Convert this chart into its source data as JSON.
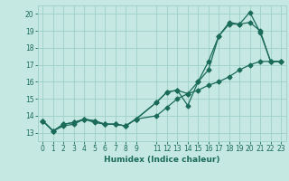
{
  "xlabel": "Humidex (Indice chaleur)",
  "xlim": [
    -0.5,
    23.5
  ],
  "ylim": [
    12.5,
    20.5
  ],
  "yticks": [
    13,
    14,
    15,
    16,
    17,
    18,
    19,
    20
  ],
  "xticks": [
    0,
    1,
    2,
    3,
    4,
    5,
    6,
    7,
    8,
    9,
    11,
    12,
    13,
    14,
    15,
    16,
    17,
    18,
    19,
    20,
    21,
    22,
    23
  ],
  "xticklabels": [
    "0",
    "1",
    "2",
    "3",
    "4",
    "5",
    "6",
    "7",
    "8",
    "9",
    "11",
    "12",
    "13",
    "14",
    "15",
    "16",
    "17",
    "18",
    "19",
    "20",
    "21",
    "22",
    "23"
  ],
  "bg_color": "#c5e8e2",
  "grid_color": "#9ecfc7",
  "line_color": "#1a6b5a",
  "line1_x": [
    0,
    1,
    2,
    3,
    4,
    5,
    6,
    7,
    8,
    9,
    11,
    12,
    13,
    14,
    15,
    16,
    17,
    18,
    19,
    20,
    21,
    22,
    23
  ],
  "line1_y": [
    13.7,
    13.1,
    13.5,
    13.6,
    13.8,
    13.7,
    13.5,
    13.5,
    13.4,
    13.8,
    14.8,
    15.4,
    15.5,
    14.6,
    16.0,
    16.7,
    18.7,
    19.4,
    19.4,
    20.1,
    18.9,
    17.2,
    17.2
  ],
  "line2_x": [
    0,
    1,
    2,
    3,
    4,
    5,
    6,
    7,
    8,
    9,
    11,
    12,
    13,
    14,
    15,
    16,
    17,
    18,
    19,
    20,
    21,
    22,
    23
  ],
  "line2_y": [
    13.7,
    13.1,
    13.5,
    13.6,
    13.8,
    13.7,
    13.5,
    13.5,
    13.4,
    13.8,
    14.0,
    14.5,
    15.0,
    15.3,
    15.5,
    15.8,
    16.0,
    16.3,
    16.7,
    17.0,
    17.2,
    17.2,
    17.2
  ],
  "line3_x": [
    0,
    1,
    2,
    3,
    4,
    5,
    6,
    7,
    8,
    9,
    11,
    12,
    13,
    14,
    15,
    16,
    17,
    18,
    19,
    20,
    21,
    22,
    23
  ],
  "line3_y": [
    13.7,
    13.1,
    13.4,
    13.5,
    13.8,
    13.6,
    13.5,
    13.5,
    13.4,
    13.8,
    14.8,
    15.4,
    15.5,
    15.3,
    16.0,
    17.2,
    18.7,
    19.5,
    19.4,
    19.5,
    19.0,
    17.2,
    17.2
  ]
}
